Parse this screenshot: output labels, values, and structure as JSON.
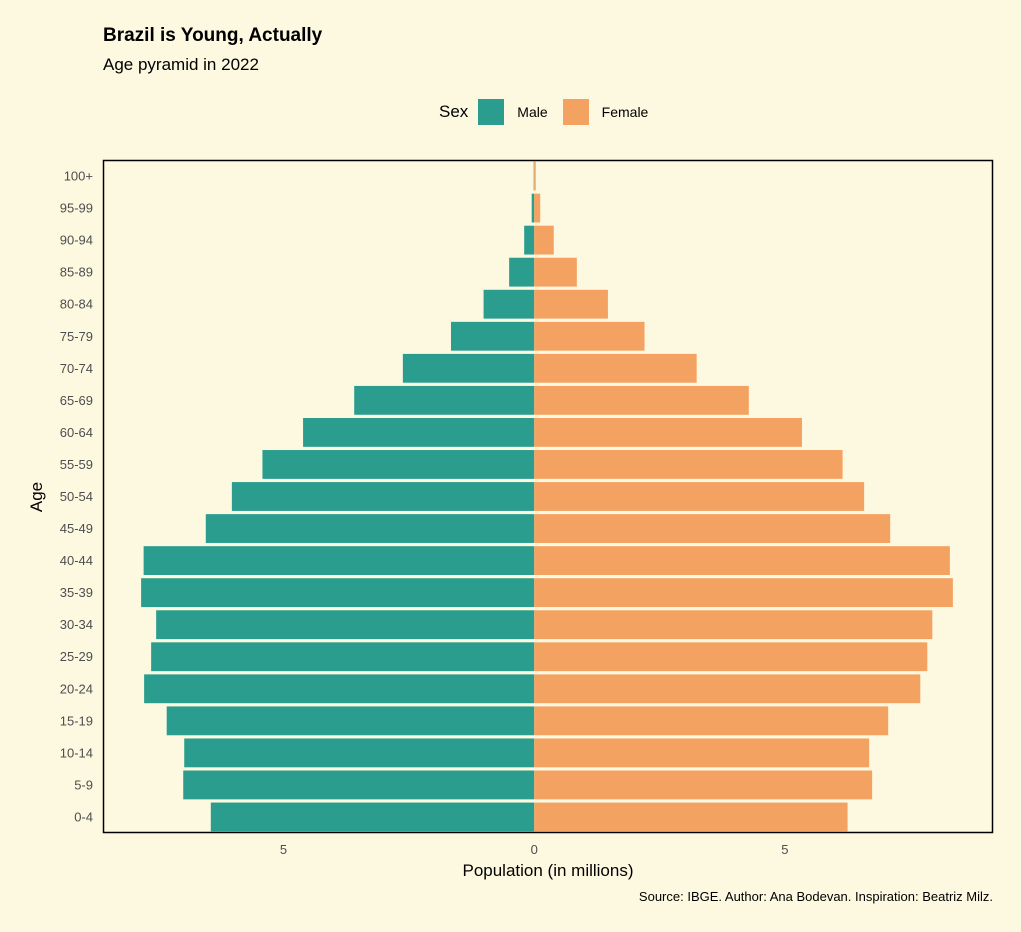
{
  "title": "Brazil is Young, Actually",
  "subtitle": "Age pyramid in 2022",
  "caption": "Source: IBGE. Author: Ana Bodevan. Inspiration: Beatriz Milz.",
  "legend": {
    "title": "Sex",
    "items": [
      "Male",
      "Female"
    ]
  },
  "colors": {
    "Male": "#2a9d8f",
    "Female": "#f4a261",
    "background": "#fdf9e1"
  },
  "chart_data": {
    "type": "bar",
    "orientation": "horizontal",
    "xlabel": "Population (in millions)",
    "ylabel": "Age",
    "xlim": [
      -8.6,
      9.15
    ],
    "x_ticks": [
      {
        "value": -5,
        "label": "5"
      },
      {
        "value": 0,
        "label": "0"
      },
      {
        "value": 5,
        "label": "5"
      }
    ],
    "categories": [
      "0-4",
      "5-9",
      "10-14",
      "15-19",
      "20-24",
      "25-29",
      "30-34",
      "35-39",
      "40-44",
      "45-49",
      "50-54",
      "55-59",
      "60-64",
      "65-69",
      "70-74",
      "75-79",
      "80-84",
      "85-89",
      "90-94",
      "95-99",
      "100+"
    ],
    "series": [
      {
        "name": "Male",
        "values": [
          6.45,
          7.0,
          6.98,
          7.33,
          7.78,
          7.64,
          7.54,
          7.84,
          7.79,
          6.55,
          6.03,
          5.42,
          4.61,
          3.59,
          2.62,
          1.66,
          1.01,
          0.5,
          0.2,
          0.05,
          0.01
        ]
      },
      {
        "name": "Female",
        "values": [
          6.25,
          6.74,
          6.68,
          7.06,
          7.7,
          7.84,
          7.94,
          8.35,
          8.29,
          7.1,
          6.58,
          6.15,
          5.34,
          4.28,
          3.24,
          2.2,
          1.47,
          0.85,
          0.39,
          0.12,
          0.03
        ]
      }
    ],
    "legend_position": "top",
    "grid": false
  }
}
